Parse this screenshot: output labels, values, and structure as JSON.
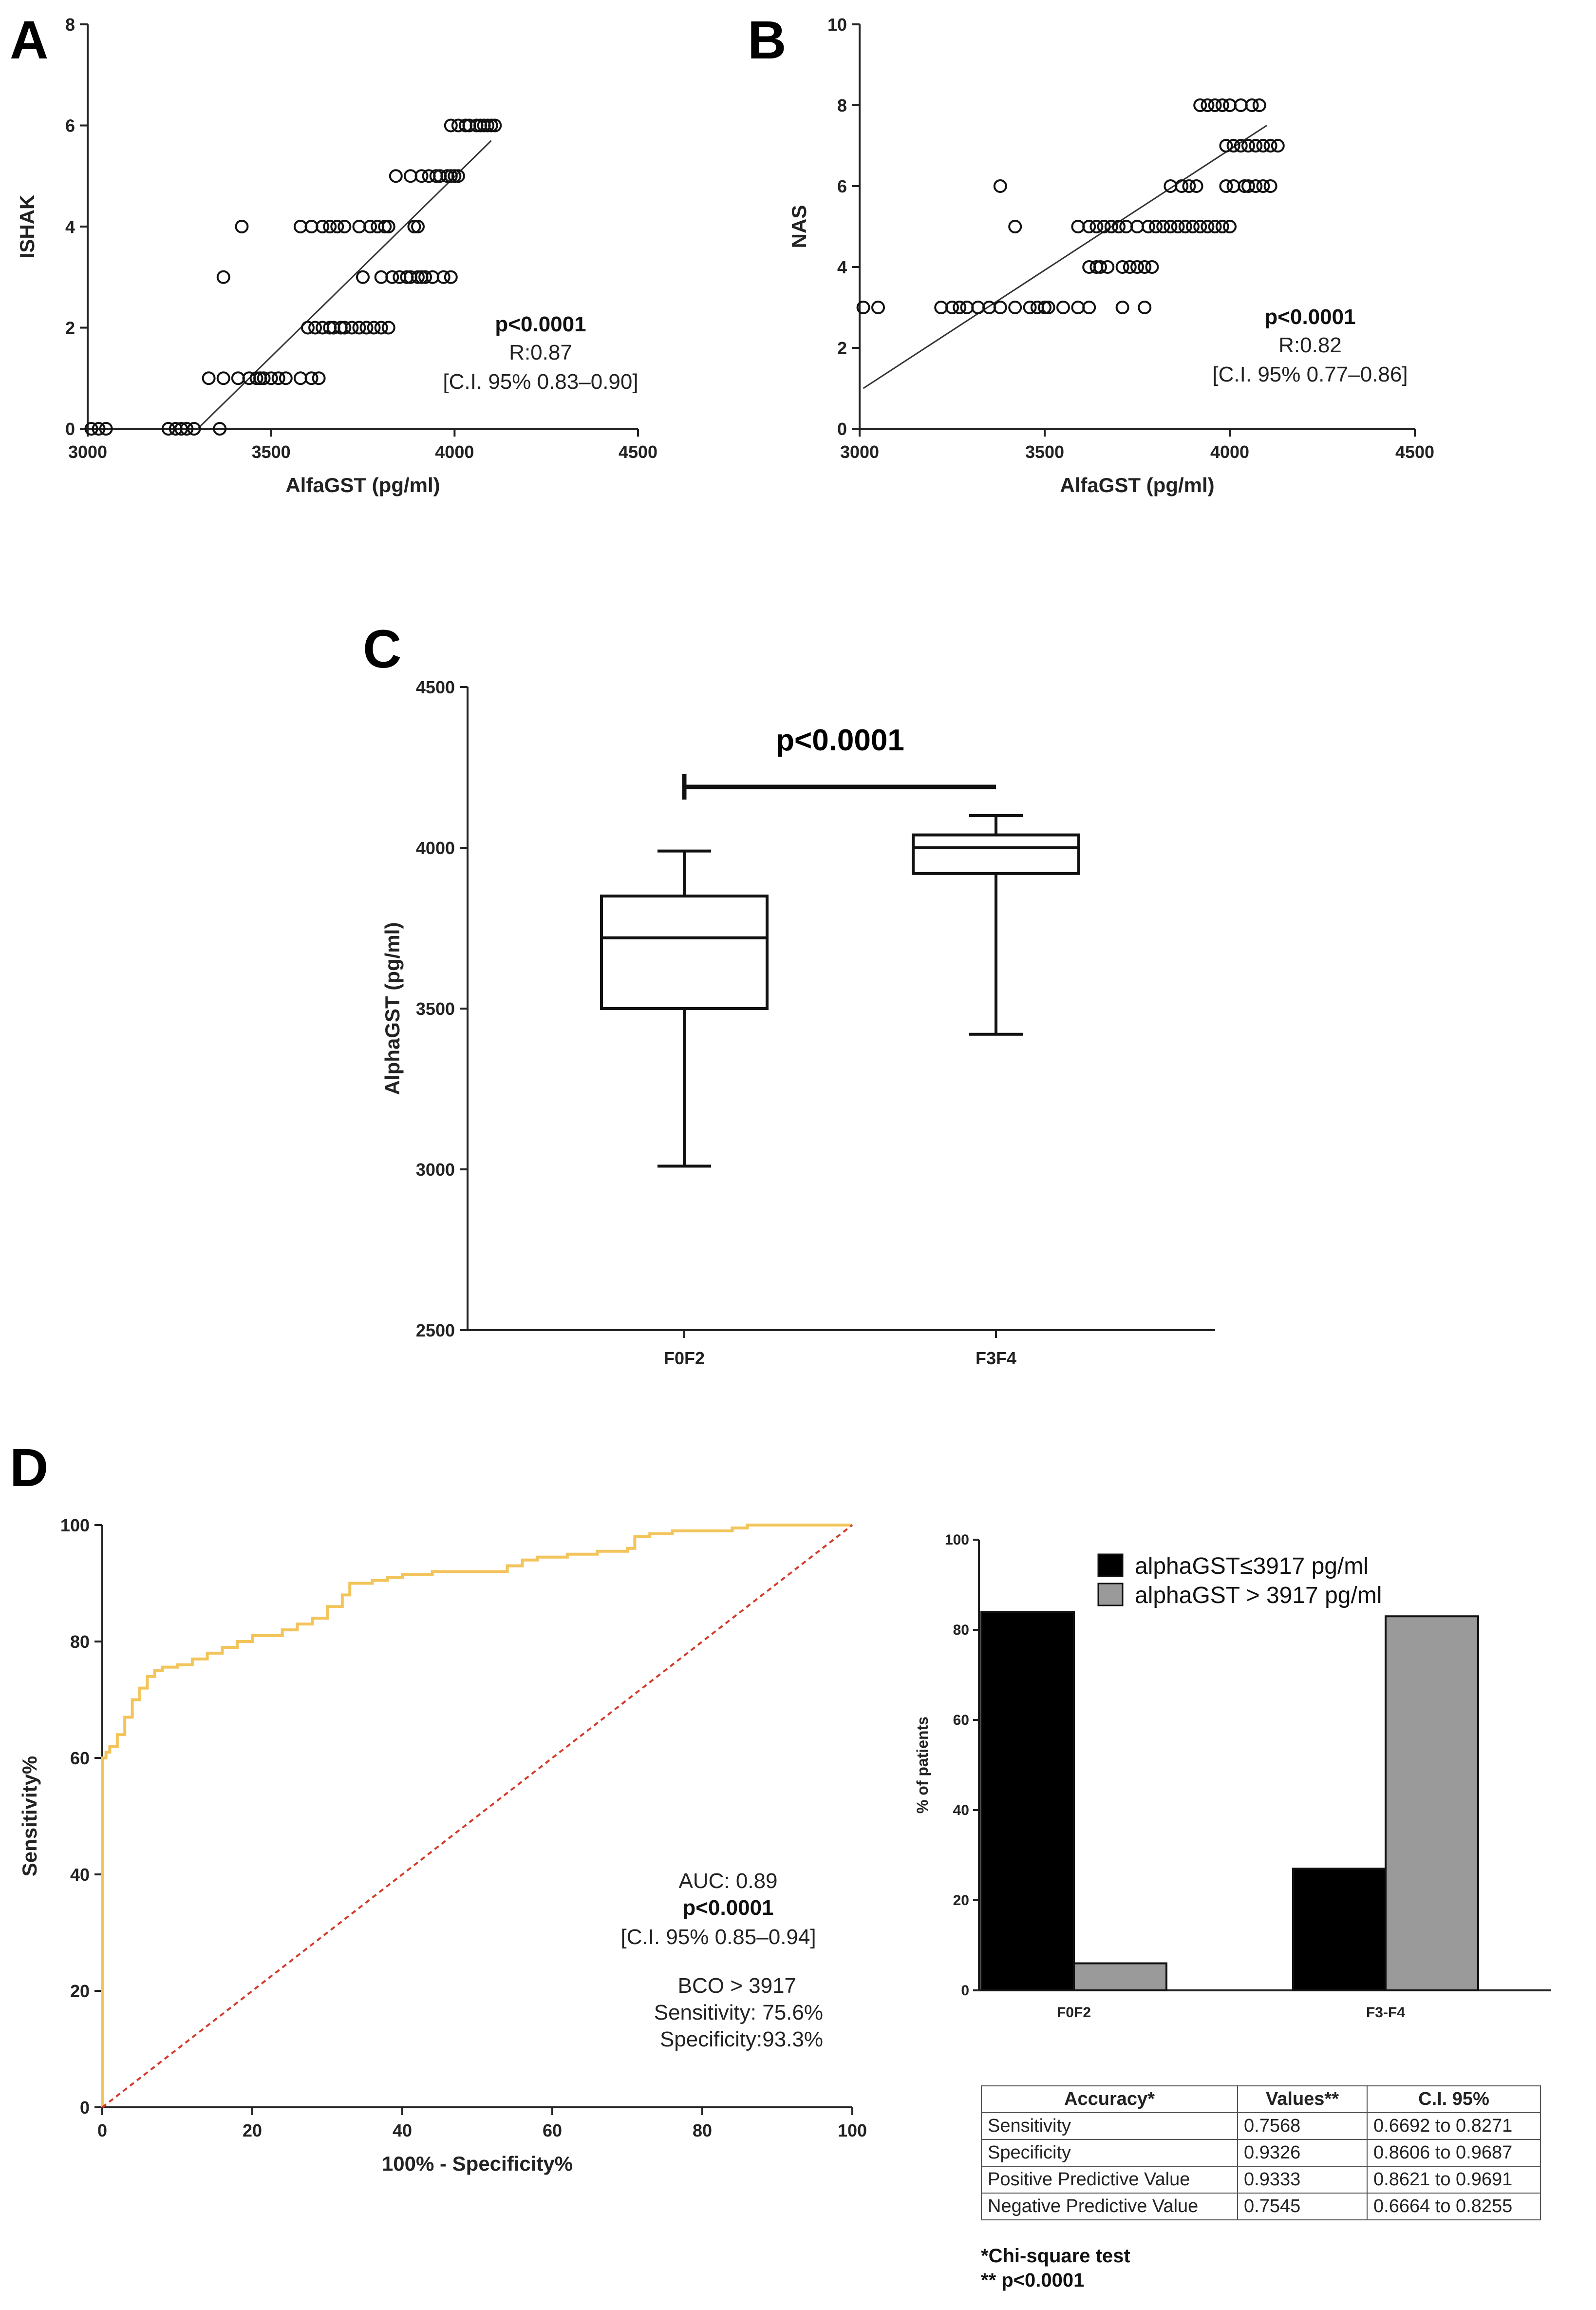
{
  "chart_data": [
    {
      "panel": "A",
      "type": "scatter",
      "xlabel": "AlfaGST (pg/ml)",
      "ylabel": "ISHAK",
      "xlim": [
        3000,
        4500
      ],
      "ylim": [
        0,
        8
      ],
      "xticks": [
        "3000",
        "3500",
        "4000",
        "4500"
      ],
      "yticks": [
        "0",
        "2",
        "4",
        "6",
        "8"
      ],
      "points": [
        [
          3010,
          0
        ],
        [
          3030,
          0
        ],
        [
          3050,
          0
        ],
        [
          3220,
          0
        ],
        [
          3240,
          0
        ],
        [
          3255,
          0
        ],
        [
          3270,
          0
        ],
        [
          3290,
          0
        ],
        [
          3360,
          0
        ],
        [
          3330,
          1
        ],
        [
          3370,
          1
        ],
        [
          3410,
          1
        ],
        [
          3440,
          1
        ],
        [
          3460,
          1
        ],
        [
          3470,
          1
        ],
        [
          3480,
          1
        ],
        [
          3500,
          1
        ],
        [
          3520,
          1
        ],
        [
          3540,
          1
        ],
        [
          3580,
          1
        ],
        [
          3610,
          1
        ],
        [
          3630,
          1
        ],
        [
          3370,
          3
        ],
        [
          3420,
          4
        ],
        [
          3600,
          2
        ],
        [
          3620,
          2
        ],
        [
          3640,
          2
        ],
        [
          3660,
          2
        ],
        [
          3670,
          2
        ],
        [
          3690,
          2
        ],
        [
          3700,
          2
        ],
        [
          3720,
          2
        ],
        [
          3740,
          2
        ],
        [
          3760,
          2
        ],
        [
          3780,
          2
        ],
        [
          3800,
          2
        ],
        [
          3820,
          2
        ],
        [
          3580,
          4
        ],
        [
          3610,
          4
        ],
        [
          3640,
          4
        ],
        [
          3660,
          4
        ],
        [
          3680,
          4
        ],
        [
          3700,
          4
        ],
        [
          3740,
          4
        ],
        [
          3770,
          4
        ],
        [
          3790,
          4
        ],
        [
          3810,
          4
        ],
        [
          3820,
          4
        ],
        [
          3890,
          4
        ],
        [
          3900,
          4
        ],
        [
          3750,
          3
        ],
        [
          3800,
          3
        ],
        [
          3830,
          3
        ],
        [
          3850,
          3
        ],
        [
          3870,
          3
        ],
        [
          3880,
          3
        ],
        [
          3900,
          3
        ],
        [
          3910,
          3
        ],
        [
          3920,
          3
        ],
        [
          3940,
          3
        ],
        [
          3970,
          3
        ],
        [
          3990,
          3
        ],
        [
          3840,
          5
        ],
        [
          3880,
          5
        ],
        [
          3910,
          5
        ],
        [
          3930,
          5
        ],
        [
          3950,
          5
        ],
        [
          3960,
          5
        ],
        [
          3980,
          5
        ],
        [
          3990,
          5
        ],
        [
          4000,
          5
        ],
        [
          4010,
          5
        ],
        [
          3990,
          6
        ],
        [
          4010,
          6
        ],
        [
          4030,
          6
        ],
        [
          4040,
          6
        ],
        [
          4060,
          6
        ],
        [
          4070,
          6
        ],
        [
          4080,
          6
        ],
        [
          4090,
          6
        ],
        [
          4100,
          6
        ],
        [
          4110,
          6
        ]
      ],
      "fit_line": [
        [
          3300,
          0
        ],
        [
          4100,
          5.7
        ]
      ],
      "stats": {
        "p": "p<0.0001",
        "r": "R:0.87",
        "ci": "[C.I. 95% 0.83–0.90]"
      }
    },
    {
      "panel": "B",
      "type": "scatter",
      "xlabel": "AlfaGST (pg/ml)",
      "ylabel": "NAS",
      "xlim": [
        3000,
        4500
      ],
      "ylim": [
        0,
        10
      ],
      "xticks": [
        "3000",
        "3500",
        "4000",
        "4500"
      ],
      "yticks": [
        "0",
        "2",
        "4",
        "6",
        "8",
        "10"
      ],
      "points": [
        [
          3010,
          3
        ],
        [
          3050,
          3
        ],
        [
          3220,
          3
        ],
        [
          3250,
          3
        ],
        [
          3270,
          3
        ],
        [
          3290,
          3
        ],
        [
          3320,
          3
        ],
        [
          3350,
          3
        ],
        [
          3380,
          3
        ],
        [
          3420,
          3
        ],
        [
          3460,
          3
        ],
        [
          3480,
          3
        ],
        [
          3500,
          3
        ],
        [
          3510,
          3
        ],
        [
          3550,
          3
        ],
        [
          3590,
          3
        ],
        [
          3620,
          3
        ],
        [
          3710,
          3
        ],
        [
          3770,
          3
        ],
        [
          3380,
          6
        ],
        [
          3420,
          5
        ],
        [
          3590,
          5
        ],
        [
          3620,
          5
        ],
        [
          3640,
          5
        ],
        [
          3660,
          5
        ],
        [
          3680,
          5
        ],
        [
          3700,
          5
        ],
        [
          3720,
          5
        ],
        [
          3750,
          5
        ],
        [
          3780,
          5
        ],
        [
          3800,
          5
        ],
        [
          3820,
          5
        ],
        [
          3840,
          5
        ],
        [
          3860,
          5
        ],
        [
          3880,
          5
        ],
        [
          3900,
          5
        ],
        [
          3920,
          5
        ],
        [
          3940,
          5
        ],
        [
          3960,
          5
        ],
        [
          3980,
          5
        ],
        [
          4000,
          5
        ],
        [
          3620,
          4
        ],
        [
          3640,
          4
        ],
        [
          3650,
          4
        ],
        [
          3670,
          4
        ],
        [
          3710,
          4
        ],
        [
          3730,
          4
        ],
        [
          3750,
          4
        ],
        [
          3770,
          4
        ],
        [
          3790,
          4
        ],
        [
          3840,
          6
        ],
        [
          3870,
          6
        ],
        [
          3890,
          6
        ],
        [
          3910,
          6
        ],
        [
          3990,
          6
        ],
        [
          4010,
          6
        ],
        [
          4040,
          6
        ],
        [
          4050,
          6
        ],
        [
          4070,
          6
        ],
        [
          4090,
          6
        ],
        [
          4110,
          6
        ],
        [
          3920,
          8
        ],
        [
          3940,
          8
        ],
        [
          3960,
          8
        ],
        [
          3980,
          8
        ],
        [
          4000,
          8
        ],
        [
          4030,
          8
        ],
        [
          4060,
          8
        ],
        [
          4080,
          8
        ],
        [
          3990,
          7
        ],
        [
          4010,
          7
        ],
        [
          4030,
          7
        ],
        [
          4050,
          7
        ],
        [
          4070,
          7
        ],
        [
          4090,
          7
        ],
        [
          4110,
          7
        ],
        [
          4130,
          7
        ]
      ],
      "fit_line": [
        [
          3010,
          1.0
        ],
        [
          4100,
          7.5
        ]
      ],
      "stats": {
        "p": "p<0.0001",
        "r": "R:0.82",
        "ci": "[C.I. 95% 0.77–0.86]"
      }
    },
    {
      "panel": "C",
      "type": "box",
      "ylabel": "AlphaGST (pg/ml)",
      "ylim": [
        2500,
        4500
      ],
      "yticks": [
        "2500",
        "3000",
        "3500",
        "4000",
        "4500"
      ],
      "categories": [
        "F0F2",
        "F3F4"
      ],
      "boxes": [
        {
          "min": 3010,
          "q1": 3500,
          "median": 3720,
          "q3": 3850,
          "max": 3990
        },
        {
          "min": 3420,
          "q1": 3920,
          "median": 4000,
          "q3": 4040,
          "max": 4100
        }
      ],
      "comparison": "p<0.0001"
    },
    {
      "panel": "D",
      "type": "line",
      "xlabel": "100% - Specificity%",
      "ylabel": "Sensitivity%",
      "xlim": [
        0,
        100
      ],
      "ylim": [
        0,
        100
      ],
      "xticks": [
        "0",
        "20",
        "40",
        "60",
        "80",
        "100"
      ],
      "yticks": [
        "0",
        "20",
        "40",
        "60",
        "80",
        "100"
      ],
      "series": [
        {
          "color": "#f2c45a",
          "x": [
            0,
            0,
            0.5,
            1,
            2,
            3,
            4,
            5,
            6,
            7,
            8,
            10,
            12,
            14,
            16,
            18,
            20,
            22,
            24,
            26,
            28,
            30,
            32,
            33,
            36,
            38,
            40,
            44,
            48,
            52,
            54,
            56,
            58,
            62,
            66,
            70,
            71,
            73,
            76,
            80,
            84,
            86,
            90,
            95,
            100
          ],
          "y": [
            0,
            60,
            61,
            62,
            64,
            67,
            70,
            72,
            74,
            75,
            75.6,
            76,
            77,
            78,
            79,
            80,
            81,
            81,
            82,
            83,
            84,
            86,
            88,
            90,
            90.5,
            91,
            91.5,
            92,
            92,
            92,
            93,
            94,
            94.5,
            95,
            95.5,
            96,
            98,
            98.5,
            99,
            99,
            99.5,
            100,
            100,
            100,
            100
          ]
        },
        {
          "color": "#d43a2a",
          "dashed": true,
          "x": [
            0,
            100
          ],
          "y": [
            0,
            100
          ]
        }
      ],
      "stats": {
        "auc": "AUC: 0.89",
        "p": "p<0.0001",
        "ci": "[C.I. 95% 0.85–0.94]",
        "bco": "BCO > 3917",
        "sens": "Sensitivity: 75.6%",
        "spec": "Specificity:93.3%"
      }
    },
    {
      "panel": "D-bar",
      "type": "bar",
      "ylabel": "% of patients",
      "ylim": [
        0,
        100
      ],
      "yticks": [
        "0",
        "20",
        "40",
        "60",
        "80",
        "100"
      ],
      "categories": [
        "F0F2",
        "F3-F4"
      ],
      "series": [
        {
          "name": "alphaGST≤3917 pg/ml",
          "color": "#000000",
          "values": [
            84,
            27
          ]
        },
        {
          "name": "alphaGST > 3917 pg/ml",
          "color": "#9a9a9a",
          "values": [
            6,
            83
          ]
        }
      ]
    }
  ],
  "panels": {
    "a": "A",
    "b": "B",
    "c": "C",
    "d": "D"
  },
  "table": {
    "headers": [
      "Accuracy*",
      "Values**",
      "C.I. 95%"
    ],
    "rows": [
      [
        "Sensitivity",
        "0.7568",
        "0.6692 to 0.8271"
      ],
      [
        "Specificity",
        "0.9326",
        "0.8606 to 0.9687"
      ],
      [
        "Positive Predictive Value",
        "0.9333",
        "0.8621 to 0.9691"
      ],
      [
        "Negative Predictive Value",
        "0.7545",
        "0.6664 to 0.8255"
      ]
    ],
    "note1": "*Chi-square test",
    "note2": "** p<0.0001"
  }
}
